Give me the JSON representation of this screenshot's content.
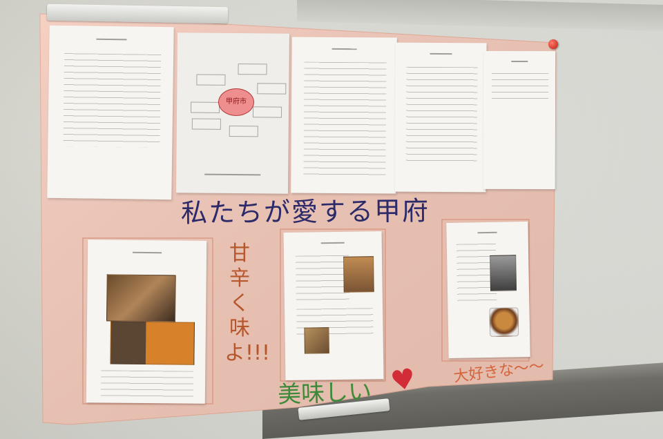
{
  "scene": {
    "description_tag": "poster-on-whiteboard",
    "poster_color": "#f4cbbd",
    "title_color": "#2d2a6a"
  },
  "handwriting": {
    "title": "私たちが愛する甲府",
    "vertical": "甘辛く味よ!!!",
    "oishii": "美味しい",
    "daisuki": "大好きな〜〜",
    "heart": "♥"
  },
  "diagram": {
    "center": "甲府市"
  }
}
